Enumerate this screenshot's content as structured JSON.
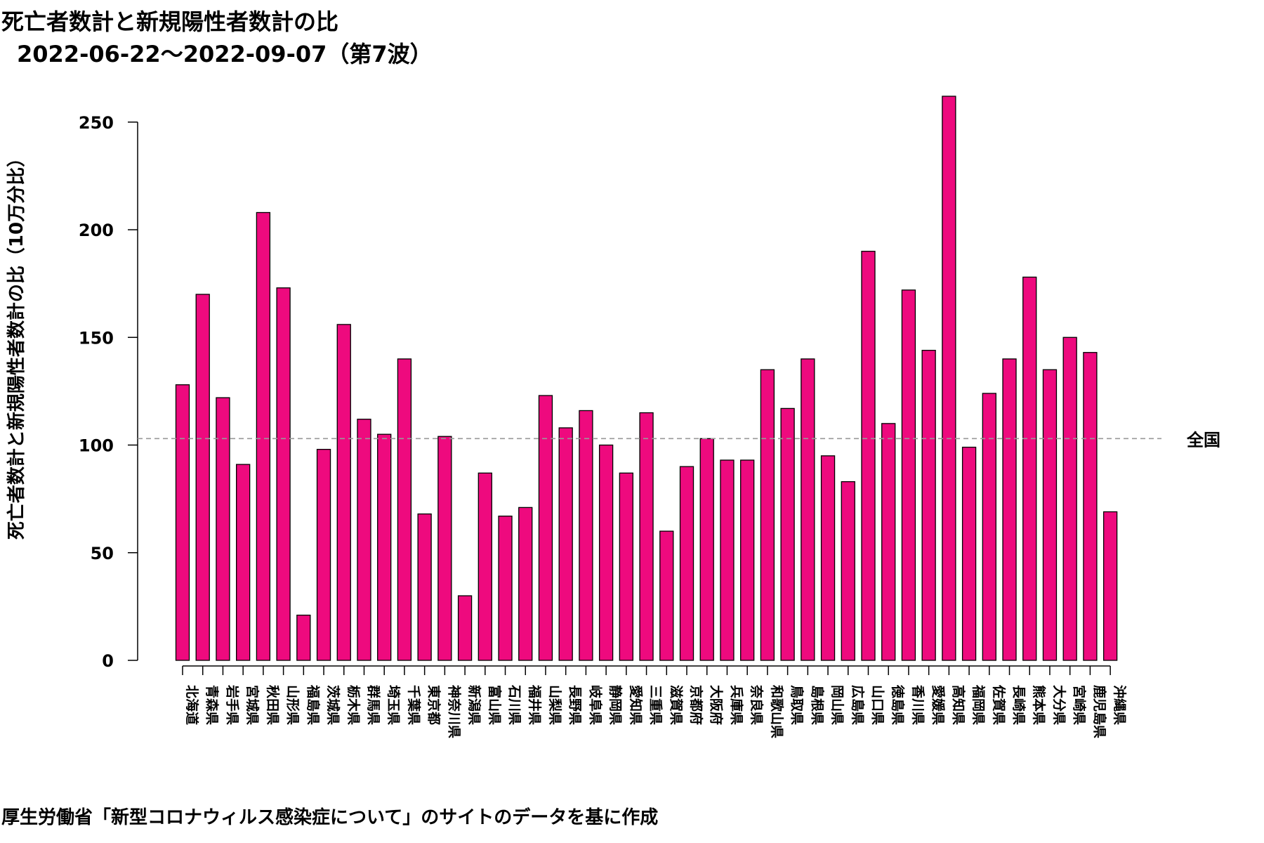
{
  "chart_data": {
    "type": "bar",
    "title": "死亡者数計と新規陽性者数計の比",
    "subtitle": "2022-06-22～2022-09-07（第7波）",
    "ylabel": "死亡者数計と新規陽性者数計の比（10万分比）",
    "xlabel": "",
    "ylim": [
      0,
      262
    ],
    "yticks": [
      0,
      50,
      100,
      150,
      200,
      250
    ],
    "grid": false,
    "bar_color": "#EE0A7E",
    "bar_stroke": "#000000",
    "reference_line": {
      "label": "全国",
      "value": 103,
      "color": "#999999"
    },
    "categories": [
      "北海道",
      "青森県",
      "岩手県",
      "宮城県",
      "秋田県",
      "山形県",
      "福島県",
      "茨城県",
      "栃木県",
      "群馬県",
      "埼玉県",
      "千葉県",
      "東京都",
      "神奈川県",
      "新潟県",
      "富山県",
      "石川県",
      "福井県",
      "山梨県",
      "長野県",
      "岐阜県",
      "静岡県",
      "愛知県",
      "三重県",
      "滋賀県",
      "京都府",
      "大阪府",
      "兵庫県",
      "奈良県",
      "和歌山県",
      "鳥取県",
      "島根県",
      "岡山県",
      "広島県",
      "山口県",
      "徳島県",
      "香川県",
      "愛媛県",
      "高知県",
      "福岡県",
      "佐賀県",
      "長崎県",
      "熊本県",
      "大分県",
      "宮崎県",
      "鹿児島県",
      "沖縄県"
    ],
    "values": [
      128,
      170,
      122,
      91,
      208,
      173,
      21,
      98,
      156,
      112,
      105,
      140,
      68,
      104,
      30,
      87,
      67,
      71,
      123,
      108,
      116,
      100,
      87,
      115,
      60,
      90,
      103,
      93,
      93,
      135,
      117,
      140,
      95,
      83,
      190,
      110,
      172,
      144,
      262,
      99,
      124,
      140,
      178,
      135,
      150,
      143,
      69
    ],
    "note": "厚生労働省「新型コロナウィルス感染症について」のサイトのデータを基に作成"
  }
}
